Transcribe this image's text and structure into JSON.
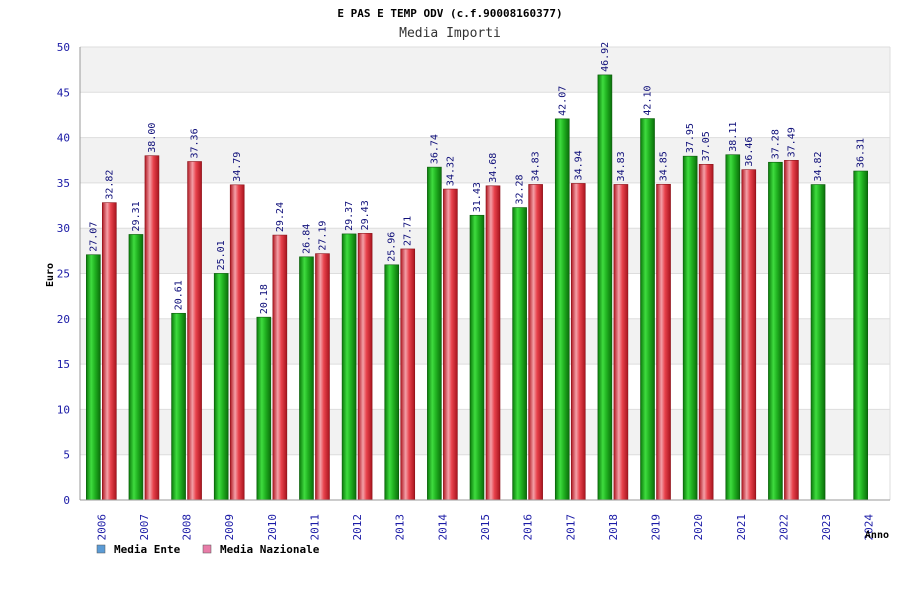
{
  "chart_data": {
    "type": "bar",
    "title": "E PAS E TEMP ODV (c.f.90008160377)",
    "subtitle": "Media Importi",
    "ylabel": "Euro",
    "xlabel": "Anno",
    "ylim": [
      0,
      50
    ],
    "yticks": [
      0,
      5,
      10,
      15,
      20,
      25,
      30,
      35,
      40,
      45,
      50
    ],
    "grid": true,
    "legend_position": "bottom-left",
    "categories": [
      "2006",
      "2007",
      "2008",
      "2009",
      "2010",
      "2011",
      "2012",
      "2013",
      "2014",
      "2015",
      "2016",
      "2017",
      "2018",
      "2019",
      "2020",
      "2021",
      "2022",
      "2023",
      "2024"
    ],
    "series": [
      {
        "name": "Media Ente",
        "color": "#22b422",
        "legend_color": "#5b9bd5",
        "values": [
          27.07,
          29.31,
          20.61,
          25.01,
          20.18,
          26.84,
          29.37,
          25.96,
          36.74,
          31.43,
          32.28,
          42.07,
          46.92,
          42.1,
          37.95,
          38.11,
          37.28,
          34.82,
          36.31
        ],
        "labels": [
          "27.07",
          "29.31",
          "20.61",
          "25.01",
          "20.18",
          "26.84",
          "29.37",
          "25.96",
          "36.74",
          "31.43",
          "32.28",
          "42.07",
          "46.92",
          "42.10",
          "37.95",
          "38.11",
          "37.28",
          "34.82",
          "36.31"
        ]
      },
      {
        "name": "Media Nazionale",
        "color": "#e8424c",
        "legend_color": "#e87ca8",
        "values": [
          32.82,
          38.0,
          37.36,
          34.79,
          29.24,
          27.19,
          29.43,
          27.71,
          34.32,
          34.68,
          34.83,
          34.94,
          34.83,
          34.85,
          37.05,
          36.46,
          37.49,
          null,
          null
        ],
        "labels": [
          "32.82",
          "38.00",
          "37.36",
          "34.79",
          "29.24",
          "27.19",
          "29.43",
          "27.71",
          "34.32",
          "34.68",
          "34.83",
          "34.94",
          "34.83",
          "34.85",
          "37.05",
          "36.46",
          "37.49",
          null,
          null
        ]
      }
    ]
  }
}
